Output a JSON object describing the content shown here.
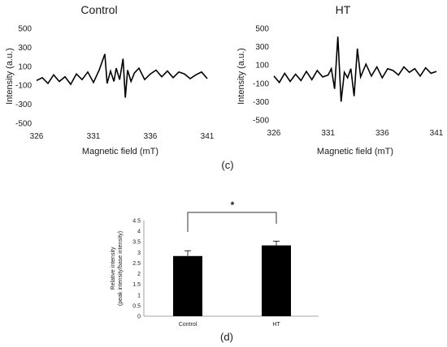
{
  "panel_labels": {
    "c": "(c)",
    "d": "(d)"
  },
  "chart_data": [
    {
      "type": "line",
      "title": "Control",
      "xlabel": "Magnetic field (mT)",
      "ylabel": "Intensity (a.u.)",
      "xlim": [
        326,
        341
      ],
      "ylim": [
        -500,
        500
      ],
      "xticks": [
        "326",
        "331",
        "336",
        "341"
      ],
      "yticks": [
        "500",
        "300",
        "100",
        "-100",
        "-300",
        "-500"
      ],
      "series": [
        {
          "x": [
            326.0,
            326.5,
            327.0,
            327.5,
            328.0,
            328.5,
            329.0,
            329.5,
            330.0,
            330.5,
            331.0,
            331.5,
            332.0,
            332.2,
            332.5,
            332.8,
            333.0,
            333.3,
            333.6,
            333.8,
            334.0,
            334.3,
            334.6,
            335.0,
            335.5,
            336.0,
            336.5,
            337.0,
            337.5,
            338.0,
            338.5,
            339.0,
            339.5,
            340.0,
            340.5,
            341.0
          ],
          "y": [
            -50,
            -20,
            -80,
            10,
            -60,
            -10,
            -90,
            20,
            -40,
            40,
            -70,
            60,
            230,
            -80,
            50,
            -60,
            80,
            -40,
            180,
            -230,
            60,
            -60,
            30,
            80,
            -40,
            20,
            60,
            -10,
            50,
            -20,
            40,
            20,
            -30,
            10,
            40,
            -30
          ]
        }
      ]
    },
    {
      "type": "line",
      "title": "HT",
      "xlabel": "Magnetic field (mT)",
      "ylabel": "Intensity (a.u.)",
      "xlim": [
        326,
        341
      ],
      "ylim": [
        -500,
        500
      ],
      "xticks": [
        "326",
        "331",
        "336",
        "341"
      ],
      "yticks": [
        "500",
        "300",
        "100",
        "-100",
        "-300",
        "-500"
      ],
      "series": [
        {
          "x": [
            326.0,
            326.5,
            327.0,
            327.5,
            328.0,
            328.5,
            329.0,
            329.5,
            330.0,
            330.5,
            331.0,
            331.3,
            331.6,
            331.9,
            332.2,
            332.5,
            332.8,
            333.1,
            333.4,
            333.7,
            334.0,
            334.5,
            335.0,
            335.5,
            336.0,
            336.5,
            337.0,
            337.5,
            338.0,
            338.5,
            339.0,
            339.5,
            340.0,
            340.5,
            341.0
          ],
          "y": [
            -20,
            -90,
            10,
            -80,
            0,
            -70,
            30,
            -60,
            40,
            -30,
            -10,
            60,
            -160,
            410,
            -300,
            20,
            -40,
            60,
            -240,
            280,
            -30,
            110,
            -20,
            80,
            -40,
            60,
            40,
            -10,
            80,
            20,
            60,
            -20,
            70,
            10,
            30
          ]
        }
      ]
    },
    {
      "type": "bar",
      "title": "",
      "xlabel": "",
      "ylabel": [
        "Relative intensity",
        "(peak intensity/base intensity)"
      ],
      "categories": [
        "Control",
        "HT"
      ],
      "values": [
        2.83,
        3.33
      ],
      "errors": [
        0.25,
        0.2
      ],
      "ylim": [
        0,
        4.5
      ],
      "yticks": [
        "0",
        "0.5",
        "1",
        "1.5",
        "2",
        "2.5",
        "3",
        "3.5",
        "4",
        "4.5"
      ],
      "significance": "*",
      "bar_color": "#000000"
    }
  ]
}
